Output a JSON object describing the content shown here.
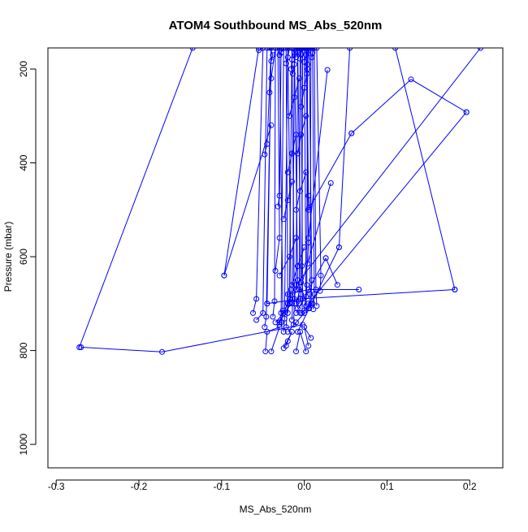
{
  "chart_data": {
    "type": "line",
    "title": "ATOM4 Southbound MS_Abs_520nm",
    "xlabel": "MS_Abs_520nm",
    "ylabel": "Pressure (mbar)",
    "xlim": [
      -0.31,
      0.24
    ],
    "ylim": [
      1050,
      155
    ],
    "y_reversed": true,
    "grid": false,
    "legend": "none",
    "x_ticks": [
      -0.3,
      -0.2,
      -0.1,
      0.0,
      0.1,
      0.2
    ],
    "x_tick_labels": [
      "-0.3",
      "-0.2",
      "-0.1",
      "0.0",
      "0.1",
      "0.2"
    ],
    "y_ticks": [
      200,
      400,
      600,
      800,
      1000
    ],
    "y_tick_labels": [
      "200",
      "400",
      "600",
      "800",
      "1000"
    ],
    "color": "#0000ff",
    "series": [
      {
        "x": [
          -0.27,
          -0.172,
          -0.002
        ],
        "y": [
          793,
          803,
          745
        ]
      },
      {
        "x": [
          -0.272,
          -0.135
        ],
        "y": [
          793,
          155
        ]
      },
      {
        "x": [
          -0.097,
          -0.055
        ],
        "y": [
          640,
          155
        ]
      },
      {
        "x": [
          -0.097,
          -0.04
        ],
        "y": [
          640,
          320
        ]
      },
      {
        "x": [
          0.182,
          -0.005,
          -0.045
        ],
        "y": [
          670,
          690,
          700
        ]
      },
      {
        "x": [
          0.182,
          0.11
        ],
        "y": [
          670,
          155
        ]
      },
      {
        "x": [
          0.196,
          0.129,
          0.057
        ],
        "y": [
          292,
          222,
          337
        ]
      },
      {
        "x": [
          0.057,
          0.005
        ],
        "y": [
          337,
          500
        ]
      },
      {
        "x": [
          0.196,
          0.005
        ],
        "y": [
          292,
          700
        ]
      },
      {
        "x": [
          0.213,
          -0.01
        ],
        "y": [
          155,
          660
        ]
      },
      {
        "x": [
          0.066,
          0.005,
          -0.02
        ],
        "y": [
          670,
          670,
          680
        ]
      },
      {
        "x": [
          0.042,
          -0.008
        ],
        "y": [
          580,
          760
        ]
      },
      {
        "x": [
          0.042,
          0.055
        ],
        "y": [
          580,
          155
        ]
      },
      {
        "x": [
          0.026,
          -0.01
        ],
        "y": [
          603,
          720
        ]
      },
      {
        "x": [
          0.026,
          0.04
        ],
        "y": [
          603,
          660
        ]
      },
      {
        "x": [
          0.032,
          -0.01
        ],
        "y": [
          443,
          700
        ]
      },
      {
        "x": [
          0.028,
          0.005
        ],
        "y": [
          202,
          560
        ]
      },
      {
        "x": [
          -0.047,
          -0.045,
          -0.03,
          -0.04
        ],
        "y": [
          802,
          760,
          750,
          802
        ]
      },
      {
        "x": [
          -0.01,
          -0.005,
          0.002
        ],
        "y": [
          802,
          760,
          802
        ]
      },
      {
        "x": [
          -0.025,
          -0.015,
          -0.02,
          -0.022
        ],
        "y": [
          795,
          760,
          780,
          790
        ]
      },
      {
        "x": [
          0.005,
          0.0,
          0.008
        ],
        "y": [
          790,
          750,
          773
        ]
      },
      {
        "x": [
          -0.062,
          -0.058,
          -0.05
        ],
        "y": [
          720,
          690,
          155
        ]
      },
      {
        "x": [
          -0.058,
          -0.05,
          -0.045
        ],
        "y": [
          735,
          720,
          155
        ]
      },
      {
        "x": [
          -0.048,
          -0.046,
          -0.04
        ],
        "y": [
          750,
          728,
          155
        ]
      },
      {
        "x": [
          -0.045,
          -0.04
        ],
        "y": [
          700,
          155
        ]
      },
      {
        "x": [
          -0.038,
          -0.036,
          -0.035
        ],
        "y": [
          728,
          695,
          155
        ]
      },
      {
        "x": [
          -0.035,
          -0.03,
          -0.032
        ],
        "y": [
          630,
          560,
          155
        ]
      },
      {
        "x": [
          -0.032,
          -0.03,
          -0.028
        ],
        "y": [
          493,
          470,
          155
        ]
      },
      {
        "x": [
          -0.03,
          -0.028,
          -0.025
        ],
        "y": [
          745,
          720,
          155
        ]
      },
      {
        "x": [
          -0.028,
          -0.026,
          -0.03
        ],
        "y": [
          740,
          715,
          155
        ]
      },
      {
        "x": [
          -0.025,
          -0.024,
          -0.02
        ],
        "y": [
          760,
          732,
          155
        ]
      },
      {
        "x": [
          -0.022,
          -0.02,
          -0.022
        ],
        "y": [
          750,
          700,
          155
        ]
      },
      {
        "x": [
          -0.02,
          -0.018,
          -0.015
        ],
        "y": [
          720,
          680,
          155
        ]
      },
      {
        "x": [
          -0.018,
          -0.016,
          -0.02
        ],
        "y": [
          700,
          670,
          155
        ]
      },
      {
        "x": [
          -0.015,
          -0.014,
          -0.012
        ],
        "y": [
          735,
          690,
          155
        ]
      },
      {
        "x": [
          -0.013,
          -0.012,
          -0.015
        ],
        "y": [
          745,
          700,
          155
        ]
      },
      {
        "x": [
          -0.012,
          -0.01,
          -0.008
        ],
        "y": [
          690,
          660,
          155
        ]
      },
      {
        "x": [
          -0.01,
          -0.008,
          -0.012
        ],
        "y": [
          670,
          650,
          155
        ]
      },
      {
        "x": [
          -0.008,
          -0.006,
          -0.005
        ],
        "y": [
          710,
          670,
          155
        ]
      },
      {
        "x": [
          -0.006,
          -0.004,
          -0.008
        ],
        "y": [
          700,
          680,
          155
        ]
      },
      {
        "x": [
          -0.004,
          -0.003,
          -0.002
        ],
        "y": [
          655,
          620,
          155
        ]
      },
      {
        "x": [
          -0.003,
          -0.002,
          -0.004
        ],
        "y": [
          720,
          690,
          155
        ]
      },
      {
        "x": [
          0.0,
          0.002,
          0.0
        ],
        "y": [
          715,
          685,
          155
        ]
      },
      {
        "x": [
          0.002,
          0.003,
          0.004
        ],
        "y": [
          705,
          660,
          155
        ]
      },
      {
        "x": [
          0.004,
          0.005,
          0.002
        ],
        "y": [
          615,
          570,
          155
        ]
      },
      {
        "x": [
          0.006,
          0.007,
          0.008
        ],
        "y": [
          710,
          680,
          155
        ]
      },
      {
        "x": [
          0.008,
          0.009,
          0.006
        ],
        "y": [
          700,
          650,
          155
        ]
      },
      {
        "x": [
          0.011,
          0.012,
          0.01
        ],
        "y": [
          712,
          680,
          155
        ]
      },
      {
        "x": [
          0.015,
          0.014,
          0.012
        ],
        "y": [
          705,
          670,
          155
        ]
      },
      {
        "x": [
          0.019,
          0.02,
          0.015
        ],
        "y": [
          673,
          640,
          155
        ]
      },
      {
        "x": [
          0.006,
          0.005,
          0.003
        ],
        "y": [
          495,
          470,
          155
        ]
      },
      {
        "x": [
          -0.048,
          -0.045,
          -0.04
        ],
        "y": [
          382,
          360,
          155
        ]
      },
      {
        "x": [
          -0.042,
          -0.04,
          -0.035
        ],
        "y": [
          250,
          220,
          155
        ]
      },
      {
        "x": [
          -0.04,
          -0.038,
          -0.042
        ],
        "y": [
          183,
          170,
          155
        ]
      },
      {
        "x": [
          -0.03,
          -0.028,
          -0.025
        ],
        "y": [
          170,
          165,
          155
        ]
      },
      {
        "x": [
          -0.022,
          -0.02,
          -0.018
        ],
        "y": [
          188,
          175,
          155
        ]
      },
      {
        "x": [
          -0.016,
          -0.015,
          -0.012
        ],
        "y": [
          200,
          180,
          155
        ]
      },
      {
        "x": [
          -0.014,
          -0.012,
          -0.01
        ],
        "y": [
          210,
          190,
          155
        ]
      },
      {
        "x": [
          -0.01,
          -0.008,
          -0.006
        ],
        "y": [
          175,
          165,
          155
        ]
      },
      {
        "x": [
          -0.005,
          -0.004,
          -0.002
        ],
        "y": [
          178,
          168,
          155
        ]
      },
      {
        "x": [
          0.0,
          0.002,
          0.001
        ],
        "y": [
          185,
          170,
          155
        ]
      },
      {
        "x": [
          0.003,
          0.004,
          0.005
        ],
        "y": [
          210,
          190,
          155
        ]
      },
      {
        "x": [
          0.009,
          0.01,
          0.012
        ],
        "y": [
          175,
          165,
          155
        ]
      },
      {
        "x": [
          -0.055,
          -0.05
        ],
        "y": [
          160,
          155
        ]
      },
      {
        "x": [
          -0.012,
          -0.005
        ],
        "y": [
          165,
          155
        ]
      },
      {
        "x": [
          -0.018,
          -0.03,
          -0.02
        ],
        "y": [
          690,
          740,
          700
        ]
      },
      {
        "x": [
          -0.035,
          -0.025,
          -0.015
        ],
        "y": [
          740,
          720,
          700
        ]
      },
      {
        "x": [
          -0.02,
          -0.01,
          0.0
        ],
        "y": [
          760,
          740,
          720
        ]
      },
      {
        "x": [
          -0.005,
          0.005,
          0.01
        ],
        "y": [
          720,
          710,
          700
        ]
      },
      {
        "x": [
          -0.03,
          -0.018,
          -0.01
        ],
        "y": [
          640,
          600,
          560
        ]
      },
      {
        "x": [
          -0.015,
          -0.008,
          0.0
        ],
        "y": [
          660,
          620,
          580
        ]
      },
      {
        "x": [
          -0.025,
          -0.02,
          -0.015
        ],
        "y": [
          520,
          480,
          440
        ]
      },
      {
        "x": [
          -0.01,
          -0.005,
          0.002
        ],
        "y": [
          500,
          460,
          420
        ]
      },
      {
        "x": [
          -0.02,
          -0.015,
          -0.01
        ],
        "y": [
          420,
          380,
          340
        ]
      },
      {
        "x": [
          -0.008,
          -0.004,
          0.002
        ],
        "y": [
          380,
          340,
          300
        ]
      },
      {
        "x": [
          -0.018,
          -0.012,
          -0.006
        ],
        "y": [
          300,
          260,
          220
        ]
      },
      {
        "x": [
          -0.004,
          0.0,
          0.004
        ],
        "y": [
          280,
          240,
          200
        ]
      }
    ]
  }
}
